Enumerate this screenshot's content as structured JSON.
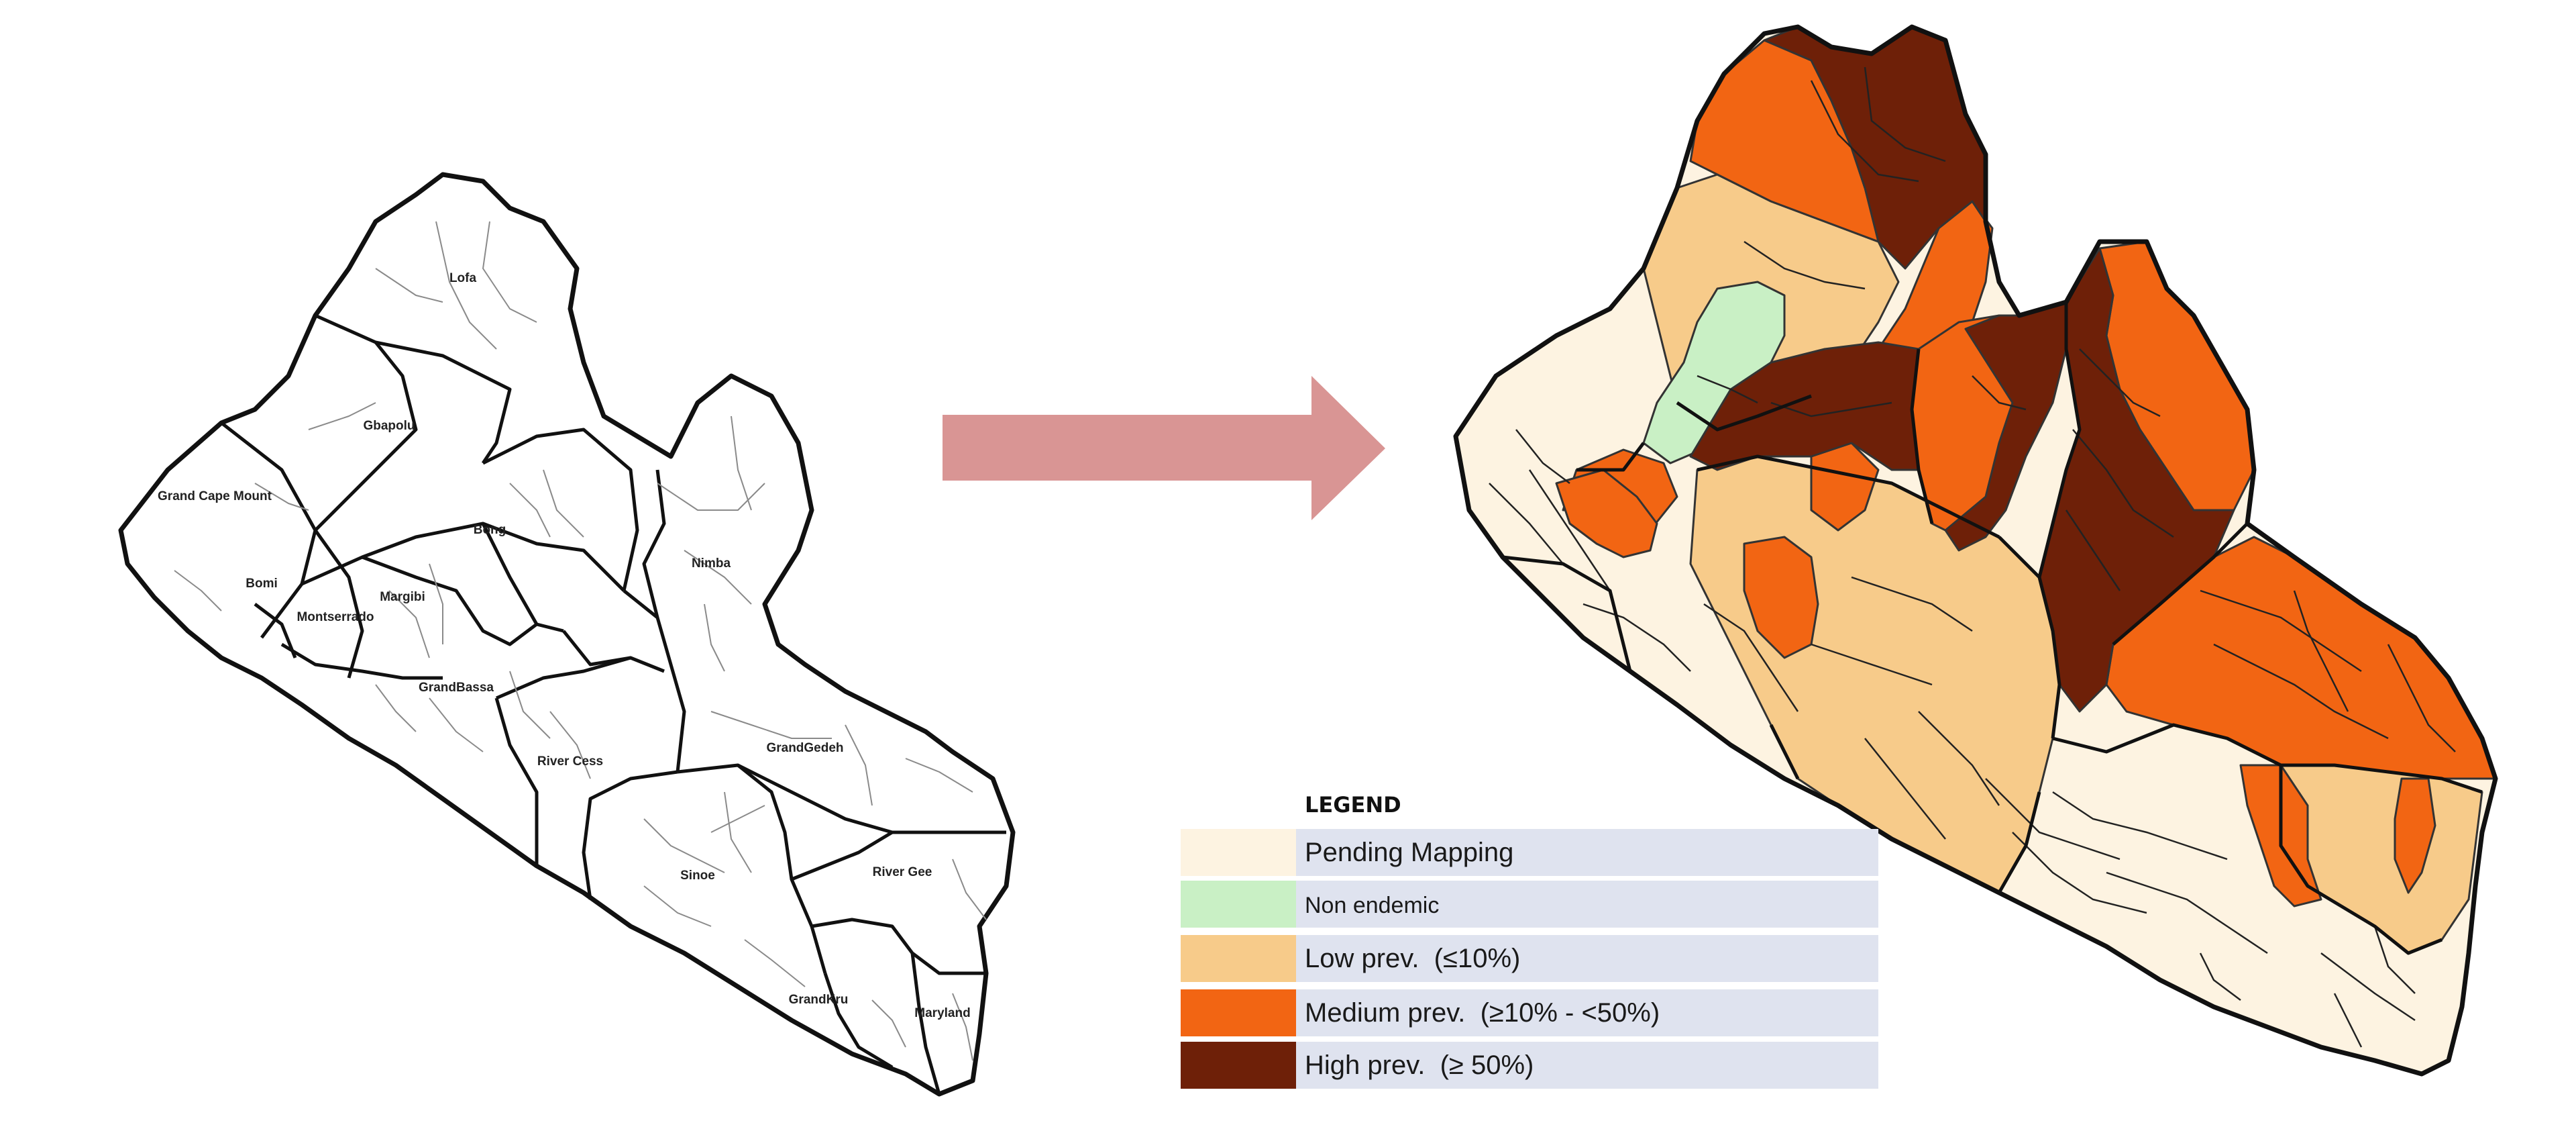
{
  "left_map": {
    "county_labels": [
      "Lofa",
      "Gbapolu",
      "Grand Cape Mount",
      "Bong",
      "Bomi",
      "Margibi",
      "Montserrado",
      "Nimba",
      "GrandBassa",
      "River Cess",
      "GrandGedeh",
      "Sinoe",
      "River Gee",
      "GrandKru",
      "Maryland"
    ]
  },
  "arrow": {
    "color": "#d99594"
  },
  "legend": {
    "title": "LEGEND",
    "items": [
      {
        "label": "Pending Mapping",
        "color": "#fdf3e1"
      },
      {
        "label": "Non endemic",
        "color": "#c9f0c5"
      },
      {
        "label": "Low prev.  (≤10%)",
        "color": "#f7cb8a"
      },
      {
        "label": "Medium prev.  (≥10% - <50%)",
        "color": "#f26513"
      },
      {
        "label": "High prev.  (≥ 50%)",
        "color": "#6e2008"
      }
    ],
    "label_background": "#dfe3ef"
  }
}
